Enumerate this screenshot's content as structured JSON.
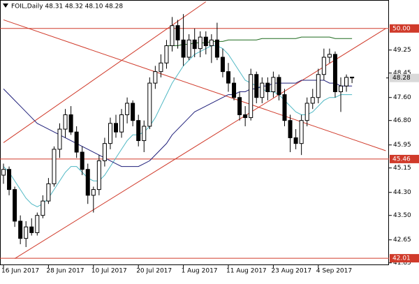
{
  "chart_data": {
    "type": "candlestick",
    "title": "FOIL,Daily  48.31 48.32 48.10 48.28",
    "categories": [
      "16 Jun 2017",
      null,
      null,
      null,
      null,
      null,
      null,
      null,
      "28 Jun 2017",
      null,
      null,
      null,
      null,
      null,
      null,
      null,
      "10 Jul 2017",
      null,
      null,
      null,
      null,
      null,
      null,
      null,
      "20 Jul 2017",
      null,
      null,
      null,
      null,
      null,
      null,
      null,
      "1 Aug 2017",
      null,
      null,
      null,
      null,
      null,
      null,
      null,
      "11 Aug 2017",
      null,
      null,
      null,
      null,
      null,
      null,
      null,
      "23 Aug 2017",
      null,
      null,
      null,
      null,
      null,
      null,
      null,
      "4 Sep 2017",
      null,
      null,
      null,
      null,
      null,
      null
    ],
    "open": [
      44.9,
      45.1,
      44.4,
      43.3,
      42.7,
      43.1,
      42.9,
      43.5,
      44.0,
      44.6,
      45.8,
      46.5,
      47.0,
      46.4,
      45.7,
      45.1,
      44.2,
      44.4,
      45.4,
      46.0,
      46.7,
      46.4,
      47.0,
      47.4,
      46.8,
      46.1,
      46.6,
      48.1,
      48.5,
      48.8,
      49.4,
      50.1,
      49.6,
      49.0,
      49.6,
      49.3,
      49.7,
      49.4,
      49.6,
      49.0,
      48.5,
      48.1,
      47.6,
      47.0,
      46.9,
      48.4,
      47.6,
      48.1,
      47.8,
      48.3,
      47.7,
      46.8,
      46.2,
      46.0,
      46.8,
      47.4,
      47.6,
      48.4,
      49.0,
      49.1,
      47.8,
      48.0,
      48.31
    ],
    "high": [
      45.3,
      45.2,
      44.5,
      43.5,
      43.3,
      43.4,
      43.6,
      44.2,
      44.8,
      45.9,
      46.7,
      47.2,
      47.3,
      46.6,
      45.9,
      45.3,
      44.5,
      45.6,
      46.2,
      46.9,
      47.0,
      47.2,
      47.6,
      47.5,
      47.0,
      46.8,
      48.3,
      48.7,
      49.1,
      49.6,
      50.4,
      50.3,
      50.5,
      49.8,
      50.0,
      49.9,
      49.9,
      49.8,
      50.2,
      49.3,
      48.8,
      48.3,
      47.8,
      47.3,
      48.6,
      48.5,
      48.3,
      48.3,
      48.5,
      48.4,
      47.9,
      47.0,
      46.5,
      47.0,
      47.6,
      47.9,
      48.6,
      49.3,
      49.3,
      49.2,
      48.3,
      48.4,
      48.32
    ],
    "low": [
      44.6,
      44.2,
      43.1,
      42.5,
      42.4,
      42.8,
      42.8,
      43.4,
      43.9,
      44.5,
      45.5,
      46.2,
      46.3,
      45.5,
      44.9,
      43.9,
      43.6,
      44.2,
      45.2,
      45.8,
      46.2,
      46.2,
      46.7,
      46.6,
      45.9,
      45.7,
      46.5,
      47.9,
      48.3,
      48.6,
      49.2,
      49.3,
      48.7,
      48.9,
      49.0,
      49.0,
      49.1,
      48.8,
      48.9,
      48.3,
      47.8,
      47.5,
      46.8,
      46.6,
      46.8,
      47.4,
      47.4,
      47.5,
      47.6,
      47.5,
      46.6,
      45.7,
      45.8,
      45.6,
      46.6,
      47.2,
      47.4,
      48.2,
      48.8,
      47.6,
      47.1,
      47.8,
      48.1
    ],
    "close": [
      45.1,
      44.4,
      43.3,
      42.7,
      43.1,
      42.9,
      43.5,
      44.0,
      44.6,
      45.8,
      46.5,
      47.0,
      46.4,
      45.7,
      45.1,
      44.2,
      44.4,
      45.4,
      46.0,
      46.7,
      46.4,
      47.0,
      47.4,
      46.8,
      46.1,
      46.6,
      48.1,
      48.5,
      48.8,
      49.4,
      50.1,
      49.6,
      49.0,
      49.6,
      49.3,
      49.7,
      49.4,
      49.6,
      49.0,
      48.5,
      48.1,
      47.6,
      47.0,
      46.9,
      48.4,
      47.6,
      48.1,
      47.8,
      48.3,
      47.7,
      46.8,
      46.2,
      46.0,
      46.8,
      47.4,
      47.6,
      48.4,
      49.0,
      49.1,
      47.8,
      48.0,
      48.3,
      48.28
    ],
    "up_color": "#ffffff",
    "down_color": "#000000",
    "outline_color": "#000000",
    "series": [
      {
        "color": "#4fb8c4",
        "values": [
          45.2,
          45.0,
          44.7,
          44.4,
          44.1,
          43.9,
          43.8,
          43.9,
          44.1,
          44.4,
          44.7,
          45.0,
          45.2,
          45.2,
          45.0,
          44.8,
          44.7,
          44.7,
          44.9,
          45.2,
          45.5,
          45.8,
          46.1,
          46.3,
          46.3,
          46.4,
          46.6,
          46.9,
          47.3,
          47.7,
          48.1,
          48.4,
          48.7,
          48.9,
          49.1,
          49.2,
          49.3,
          49.4,
          49.4,
          49.3,
          49.1,
          48.8,
          48.5,
          48.2,
          48.1,
          48.0,
          47.9,
          47.8,
          47.8,
          47.7,
          47.5,
          47.3,
          47.1,
          47.0,
          47.0,
          47.1,
          47.3,
          47.5,
          47.6,
          47.6,
          47.7,
          47.7,
          47.7
        ]
      },
      {
        "color": "#1f1f7a",
        "values": [
          47.9,
          47.7,
          47.5,
          47.3,
          47.1,
          46.9,
          46.7,
          46.6,
          46.5,
          46.4,
          46.3,
          46.2,
          46.1,
          46.0,
          45.9,
          45.8,
          45.7,
          45.6,
          45.5,
          45.4,
          45.3,
          45.2,
          45.2,
          45.2,
          45.2,
          45.3,
          45.4,
          45.6,
          45.8,
          46.0,
          46.3,
          46.5,
          46.7,
          46.9,
          47.1,
          47.2,
          47.3,
          47.4,
          47.5,
          47.6,
          47.7,
          47.7,
          47.8,
          47.8,
          47.9,
          47.9,
          48.0,
          48.0,
          48.1,
          48.1,
          48.1,
          48.1,
          48.1,
          48.2,
          48.2,
          48.2,
          48.2,
          48.2,
          48.1,
          48.1,
          48.0,
          48.0,
          48.0
        ]
      },
      {
        "color": "#1e6b1e",
        "values": [
          null,
          null,
          null,
          null,
          null,
          null,
          null,
          null,
          null,
          null,
          null,
          null,
          null,
          null,
          null,
          null,
          null,
          null,
          null,
          null,
          null,
          null,
          null,
          null,
          null,
          null,
          null,
          null,
          null,
          49.4,
          49.4,
          49.4,
          49.45,
          49.45,
          49.5,
          49.5,
          49.5,
          49.55,
          49.55,
          49.55,
          49.6,
          49.6,
          49.6,
          49.6,
          49.6,
          49.6,
          49.65,
          49.65,
          49.65,
          49.65,
          49.65,
          49.65,
          49.65,
          49.7,
          49.7,
          49.7,
          49.7,
          49.7,
          49.7,
          49.65,
          49.65,
          49.65,
          49.65
        ]
      }
    ],
    "trend_color": "#d03a2a",
    "trend_lines": [
      {
        "x": [
          0,
          36
        ],
        "y": [
          46.03,
          50.93
        ]
      },
      {
        "x": [
          2,
          68
        ],
        "y": [
          42.0,
          50.0
        ]
      },
      {
        "x": [
          0,
          68
        ],
        "y": [
          50.3,
          45.75
        ]
      }
    ],
    "hlines": [
      {
        "value": 50.0,
        "label": "50.00"
      },
      {
        "value": 45.46,
        "label": "45.46"
      },
      {
        "value": 42.01,
        "label": "42.01"
      }
    ],
    "last_price": {
      "value": 48.28,
      "label": "48.28"
    },
    "ylim": [
      41.77,
      50.99
    ],
    "yticks": [
      49.25,
      48.45,
      {
        "value": 47.6,
        "label": "47.60"
      },
      {
        "value": 46.8,
        "label": "46.80"
      },
      45.95,
      45.15,
      {
        "value": 44.3,
        "label": "44.30"
      },
      {
        "value": 43.5,
        "label": "43.50"
      },
      42.65,
      41.85
    ],
    "grid": false
  }
}
